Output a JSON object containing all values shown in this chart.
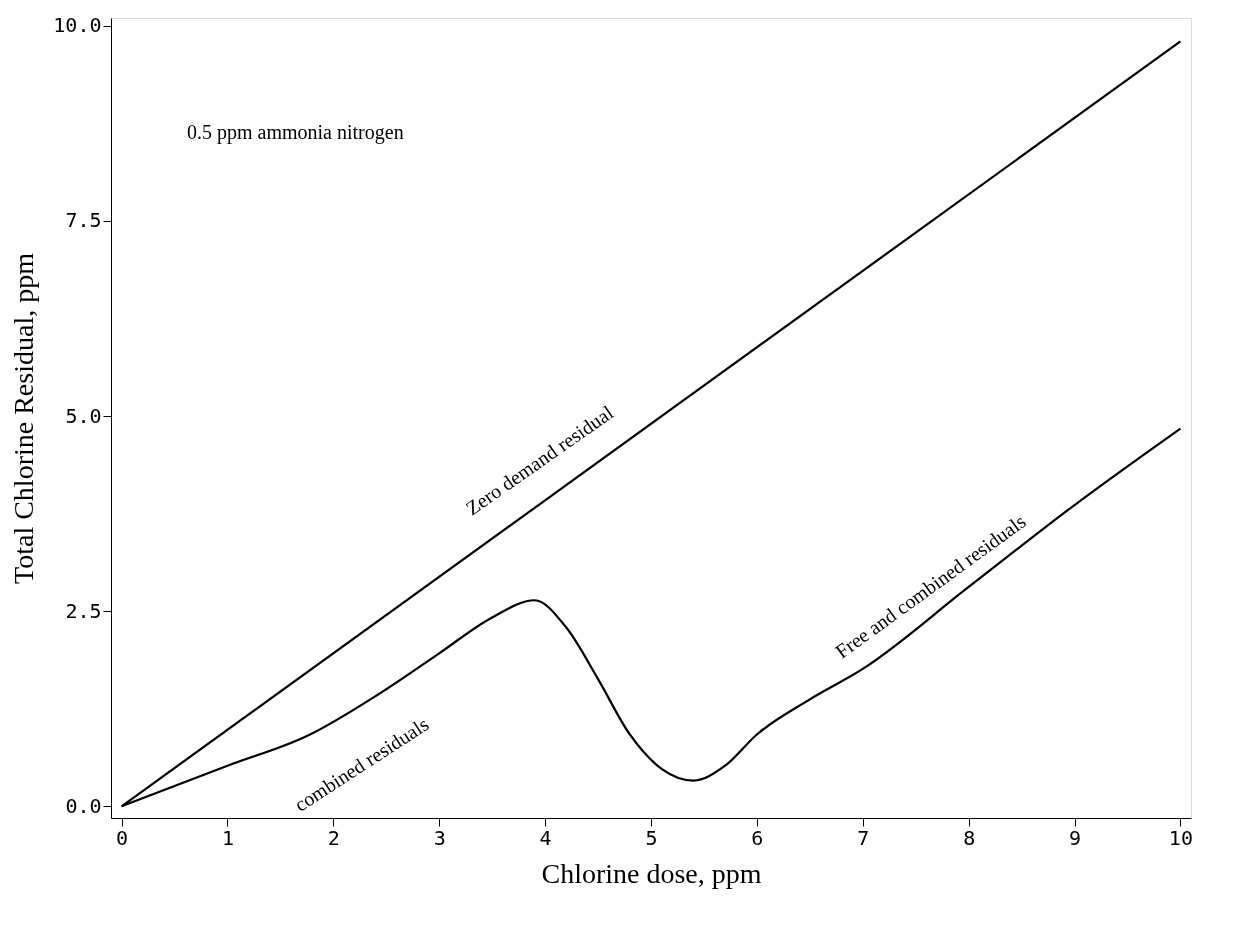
{
  "chart_data": {
    "type": "line",
    "xlabel": "Chlorine dose, ppm",
    "ylabel": "Total Chlorine Residual, ppm",
    "xlim": [
      -0.1,
      10.1
    ],
    "ylim": [
      -0.15,
      10.1
    ],
    "xticks": [
      0,
      1,
      2,
      3,
      4,
      5,
      6,
      7,
      8,
      9,
      10
    ],
    "yticks": [
      {
        "value": 0,
        "label": "0.0"
      },
      {
        "value": 2.5,
        "label": "2.5"
      },
      {
        "value": 5,
        "label": "5.0"
      },
      {
        "value": 7.5,
        "label": "7.5"
      },
      {
        "value": 10,
        "label": "10.0"
      }
    ],
    "grid": false,
    "legend": false,
    "marker": "none",
    "line_style": "solid",
    "series": [
      {
        "color": "#000000",
        "x": [
          0,
          10
        ],
        "values": [
          0,
          9.8
        ]
      },
      {
        "color": "#000000",
        "x": [
          0,
          1,
          1.75,
          2.5,
          3,
          3.5,
          3.9,
          4.2,
          4.5,
          4.8,
          5.1,
          5.4,
          5.7,
          6,
          6.5,
          7,
          8,
          9,
          10
        ],
        "values": [
          0,
          0.52,
          0.9,
          1.5,
          1.96,
          2.42,
          2.64,
          2.29,
          1.63,
          0.92,
          0.48,
          0.33,
          0.52,
          0.92,
          1.37,
          1.76,
          2.81,
          3.86,
          4.84
        ]
      }
    ],
    "annotations": [
      "0.5 ppm ammonia nitrogen",
      "Zero demand residual",
      "combined residuals",
      "Free and combined residuals"
    ]
  }
}
